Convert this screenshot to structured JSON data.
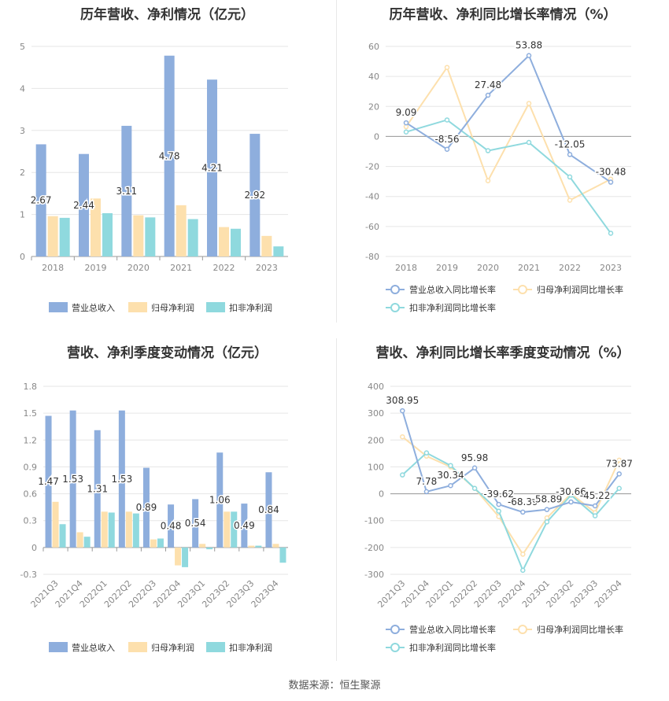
{
  "source": "数据来源：恒生聚源",
  "colors": {
    "revenue": "#8eaedd",
    "net_profit": "#fde0ad",
    "deducted_profit": "#8fd9de",
    "axis_text": "#888888",
    "grid": "#e6e6e6"
  },
  "chart_data": [
    {
      "id": "annual-bar",
      "type": "bar",
      "title": "历年营收、净利情况（亿元）",
      "categories": [
        "2018",
        "2019",
        "2020",
        "2021",
        "2022",
        "2023"
      ],
      "ylim": [
        0,
        5
      ],
      "yticks": [
        0,
        1,
        2,
        3,
        4,
        5
      ],
      "series": [
        {
          "name": "营业总收入",
          "color": "#8eaedd",
          "values": [
            2.67,
            2.44,
            3.11,
            4.78,
            4.21,
            2.92
          ],
          "labels": [
            "2.67",
            "2.44",
            "3.11",
            "4.78",
            "4.21",
            "2.92"
          ]
        },
        {
          "name": "归母净利润",
          "color": "#fde0ad",
          "values": [
            0.96,
            1.38,
            0.98,
            1.22,
            0.7,
            0.49
          ]
        },
        {
          "name": "扣非净利润",
          "color": "#8fd9de",
          "values": [
            0.92,
            1.03,
            0.93,
            0.89,
            0.66,
            0.24
          ]
        }
      ]
    },
    {
      "id": "annual-line",
      "type": "line",
      "title": "历年营收、净利同比增长率情况（%）",
      "categories": [
        "2018",
        "2019",
        "2020",
        "2021",
        "2022",
        "2023"
      ],
      "ylim": [
        -80,
        60
      ],
      "yticks": [
        -80,
        -60,
        -40,
        -20,
        0,
        20,
        40,
        60
      ],
      "series": [
        {
          "name": "营业总收入同比增长率",
          "color": "#8eaedd",
          "values": [
            9.09,
            -8.56,
            27.48,
            53.88,
            -12.05,
            -30.48
          ],
          "labels": [
            "9.09",
            "-8.56",
            "27.48",
            "53.88",
            "-12.05",
            "-30.48"
          ]
        },
        {
          "name": "归母净利润同比增长率",
          "color": "#fde0ad",
          "values": [
            6.5,
            46.0,
            -29.5,
            22.0,
            -42.5,
            -28.5
          ]
        },
        {
          "name": "扣非净利润同比增长率",
          "color": "#8fd9de",
          "values": [
            3.0,
            11.0,
            -9.5,
            -4.0,
            -27.0,
            -64.5
          ]
        }
      ]
    },
    {
      "id": "quarter-bar",
      "type": "bar",
      "title": "营收、净利季度变动情况（亿元）",
      "categories": [
        "2021Q3",
        "2021Q4",
        "2022Q1",
        "2022Q2",
        "2022Q3",
        "2022Q4",
        "2023Q1",
        "2023Q2",
        "2023Q3",
        "2023Q4"
      ],
      "ylim": [
        -0.3,
        1.8
      ],
      "yticks": [
        -0.3,
        0,
        0.3,
        0.6,
        0.9,
        1.2,
        1.5,
        1.8
      ],
      "series": [
        {
          "name": "营业总收入",
          "color": "#8eaedd",
          "values": [
            1.47,
            1.53,
            1.31,
            1.53,
            0.89,
            0.48,
            0.54,
            1.06,
            0.49,
            0.84
          ],
          "labels": [
            "1.47",
            "1.53",
            "1.31",
            "1.53",
            "0.89",
            "0.48",
            "0.54",
            "1.06",
            "0.49",
            "0.84"
          ]
        },
        {
          "name": "归母净利润",
          "color": "#fde0ad",
          "values": [
            0.51,
            0.17,
            0.4,
            0.4,
            0.09,
            -0.2,
            0.04,
            0.4,
            0.02,
            0.04
          ]
        },
        {
          "name": "扣非净利润",
          "color": "#8fd9de",
          "values": [
            0.26,
            0.12,
            0.39,
            0.38,
            0.1,
            -0.22,
            -0.02,
            0.4,
            0.02,
            -0.17
          ]
        }
      ]
    },
    {
      "id": "quarter-line",
      "type": "line",
      "title": "营收、净利同比增长率季度变动情况（%）",
      "categories": [
        "2021Q3",
        "2021Q4",
        "2022Q1",
        "2022Q2",
        "2022Q3",
        "2022Q4",
        "2023Q1",
        "2023Q2",
        "2023Q3",
        "2023Q4"
      ],
      "ylim": [
        -300,
        400
      ],
      "yticks": [
        -300,
        -200,
        -100,
        0,
        100,
        200,
        300,
        400
      ],
      "series": [
        {
          "name": "营业总收入同比增长率",
          "color": "#8eaedd",
          "values": [
            308.95,
            7.78,
            30.34,
            95.98,
            -39.62,
            -68.39,
            -58.89,
            -30.66,
            -45.22,
            73.87
          ],
          "labels": [
            "308.95",
            "7.78",
            "30.34",
            "95.98",
            "-39.62",
            "-68.39",
            "-58.89",
            "-30.66",
            "-45.22",
            "73.87"
          ]
        },
        {
          "name": "归母净利润同比增长率",
          "color": "#fde0ad",
          "values": [
            212,
            140,
            100,
            20,
            -85,
            -225,
            -90,
            0,
            -70,
            125
          ]
        },
        {
          "name": "扣非净利润同比增长率",
          "color": "#8fd9de",
          "values": [
            70,
            152,
            105,
            20,
            -65,
            -285,
            -105,
            -5,
            -82,
            20
          ]
        }
      ]
    }
  ]
}
